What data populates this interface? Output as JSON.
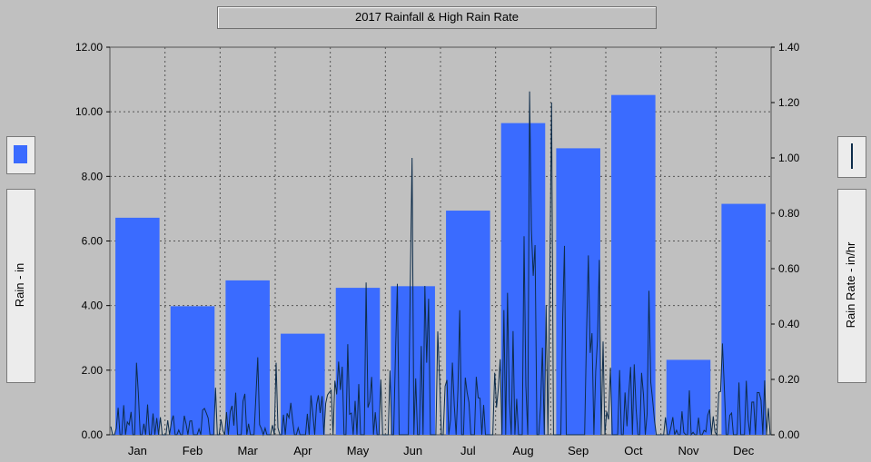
{
  "window": {
    "title": "2017 Rainfall & High Rain Rate"
  },
  "colors": {
    "bar": "#3a6bff",
    "rate_line": "#0d2c4a",
    "background": "#c0c0c0",
    "grid": "#555555"
  },
  "legend": {
    "left_icon": "blue-bar-swatch-icon",
    "right_icon": "rain-rate-line-icon"
  },
  "chart_data": {
    "type": "bar",
    "title": "2017 Rainfall & High Rain Rate",
    "ylabel": "Rain - in",
    "y2label": "Rain Rate - in/hr",
    "categories": [
      "Jan",
      "Feb",
      "Mar",
      "Apr",
      "May",
      "Jun",
      "Jul",
      "Aug",
      "Sep",
      "Oct",
      "Nov",
      "Dec"
    ],
    "ylim": [
      0,
      12
    ],
    "y2lim": [
      0,
      1.4
    ],
    "yticks": [
      "12.00",
      "10.00",
      "8.00",
      "6.00",
      "4.00",
      "2.00",
      "0.00"
    ],
    "y2ticks": [
      "1.40",
      "1.20",
      "1.00",
      "0.80",
      "0.60",
      "0.40",
      "0.20",
      "0.00"
    ],
    "grid": true,
    "series": [
      {
        "values": [
          6.72,
          3.98,
          4.78,
          3.13,
          4.55,
          4.6,
          6.94,
          9.65,
          8.87,
          10.52,
          2.32,
          7.15
        ]
      },
      {
        "axis": "right",
        "type": "line",
        "values": [
          0.26,
          0.17,
          0.28,
          0.26,
          0.55,
          1.0,
          0.45,
          1.24,
          1.2,
          0.52,
          0.16,
          0.33
        ]
      }
    ]
  }
}
